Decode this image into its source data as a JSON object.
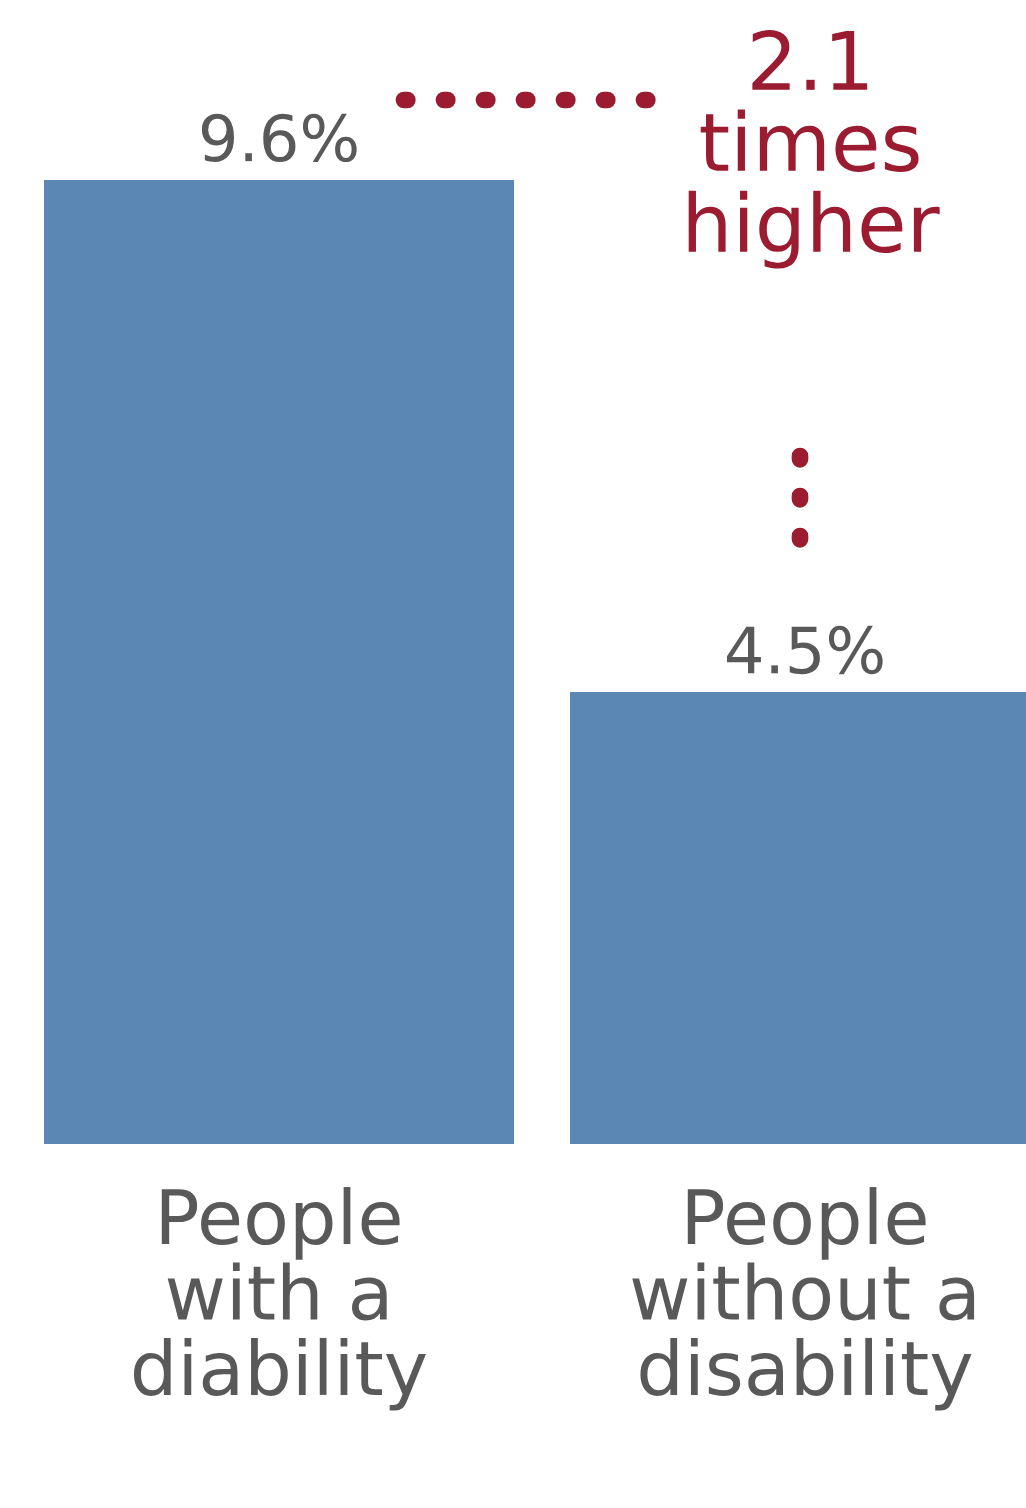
{
  "chart_data": {
    "type": "bar",
    "categories": [
      "People\nwith a\ndiability",
      "People\nwithout a\ndisability"
    ],
    "values": [
      9.6,
      4.5
    ],
    "value_labels": [
      "9.6%",
      "4.5%"
    ],
    "color": "#5b87b5",
    "annotations": [
      "2.1 times higher"
    ],
    "grid": false,
    "legend": false
  }
}
